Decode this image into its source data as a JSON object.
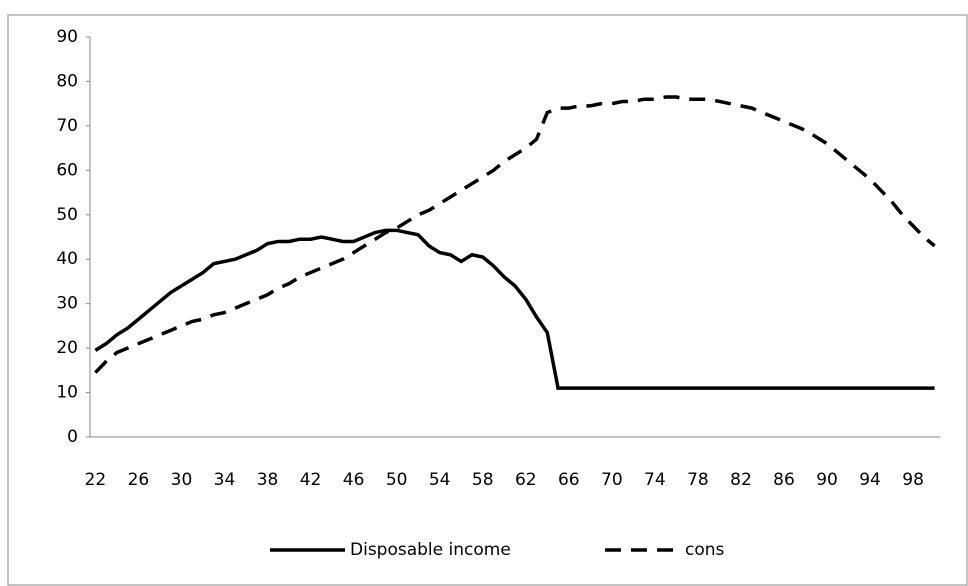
{
  "chart_data": {
    "type": "line",
    "categories": [
      "22",
      null,
      null,
      null,
      "26",
      null,
      null,
      null,
      "30",
      null,
      null,
      null,
      "34",
      null,
      null,
      null,
      "38",
      null,
      null,
      null,
      "42",
      null,
      null,
      null,
      "46",
      null,
      null,
      null,
      "50",
      null,
      null,
      null,
      "54",
      null,
      null,
      null,
      "58",
      null,
      null,
      null,
      "62",
      null,
      null,
      null,
      "66",
      null,
      null,
      null,
      "70",
      null,
      null,
      null,
      "74",
      null,
      null,
      null,
      "78",
      null,
      null,
      null,
      "82",
      null,
      null,
      null,
      "86",
      null,
      null,
      null,
      "90",
      null,
      null,
      null,
      "94",
      null,
      null,
      null,
      "98",
      null,
      null
    ],
    "series": [
      {
        "name": "Disposable income",
        "color": "#000000",
        "style": "solid",
        "values": [
          19.5,
          21,
          23,
          24.5,
          26.5,
          28.5,
          30.5,
          32.5,
          34,
          35.5,
          37,
          39,
          39.5,
          40,
          41,
          42,
          43.5,
          44,
          44,
          44.5,
          44.5,
          45,
          44.5,
          44,
          44,
          45,
          46,
          46.5,
          46.5,
          46,
          45.5,
          43,
          41.5,
          41,
          39.5,
          41,
          40.5,
          38.5,
          36,
          34,
          31,
          27,
          23.5,
          11,
          11,
          11,
          11,
          11,
          11,
          11,
          11,
          11,
          11,
          11,
          11,
          11,
          11,
          11,
          11,
          11,
          11,
          11,
          11,
          11,
          11,
          11,
          11,
          11,
          11,
          11,
          11,
          11,
          11,
          11,
          11,
          11,
          11,
          11,
          11
        ]
      },
      {
        "name": "cons",
        "color": "#000000",
        "style": "dashed",
        "values": [
          14.5,
          17,
          19,
          20,
          21,
          22,
          23,
          24,
          25,
          26,
          26.5,
          27.5,
          28,
          29,
          30,
          31,
          32,
          33.5,
          34.5,
          36,
          37,
          38,
          39,
          40,
          41.5,
          43,
          44.5,
          46,
          47,
          48.5,
          50,
          51,
          52.5,
          54,
          55.5,
          57,
          58.5,
          60,
          62,
          63.5,
          65,
          67,
          73,
          74,
          74,
          74.5,
          74.5,
          75,
          75,
          75.5,
          75.5,
          76,
          76,
          76.5,
          76.5,
          76,
          76,
          76,
          75.5,
          75,
          74.5,
          74,
          73,
          72,
          71,
          70,
          69,
          67.5,
          66,
          64,
          62,
          60,
          58,
          55.5,
          53,
          50,
          47.5,
          45,
          43
        ]
      }
    ],
    "ylim": [
      0,
      90
    ],
    "yticks": [
      0,
      10,
      20,
      30,
      40,
      50,
      60,
      70,
      80,
      90
    ],
    "grid": false,
    "legend": "bottom"
  }
}
